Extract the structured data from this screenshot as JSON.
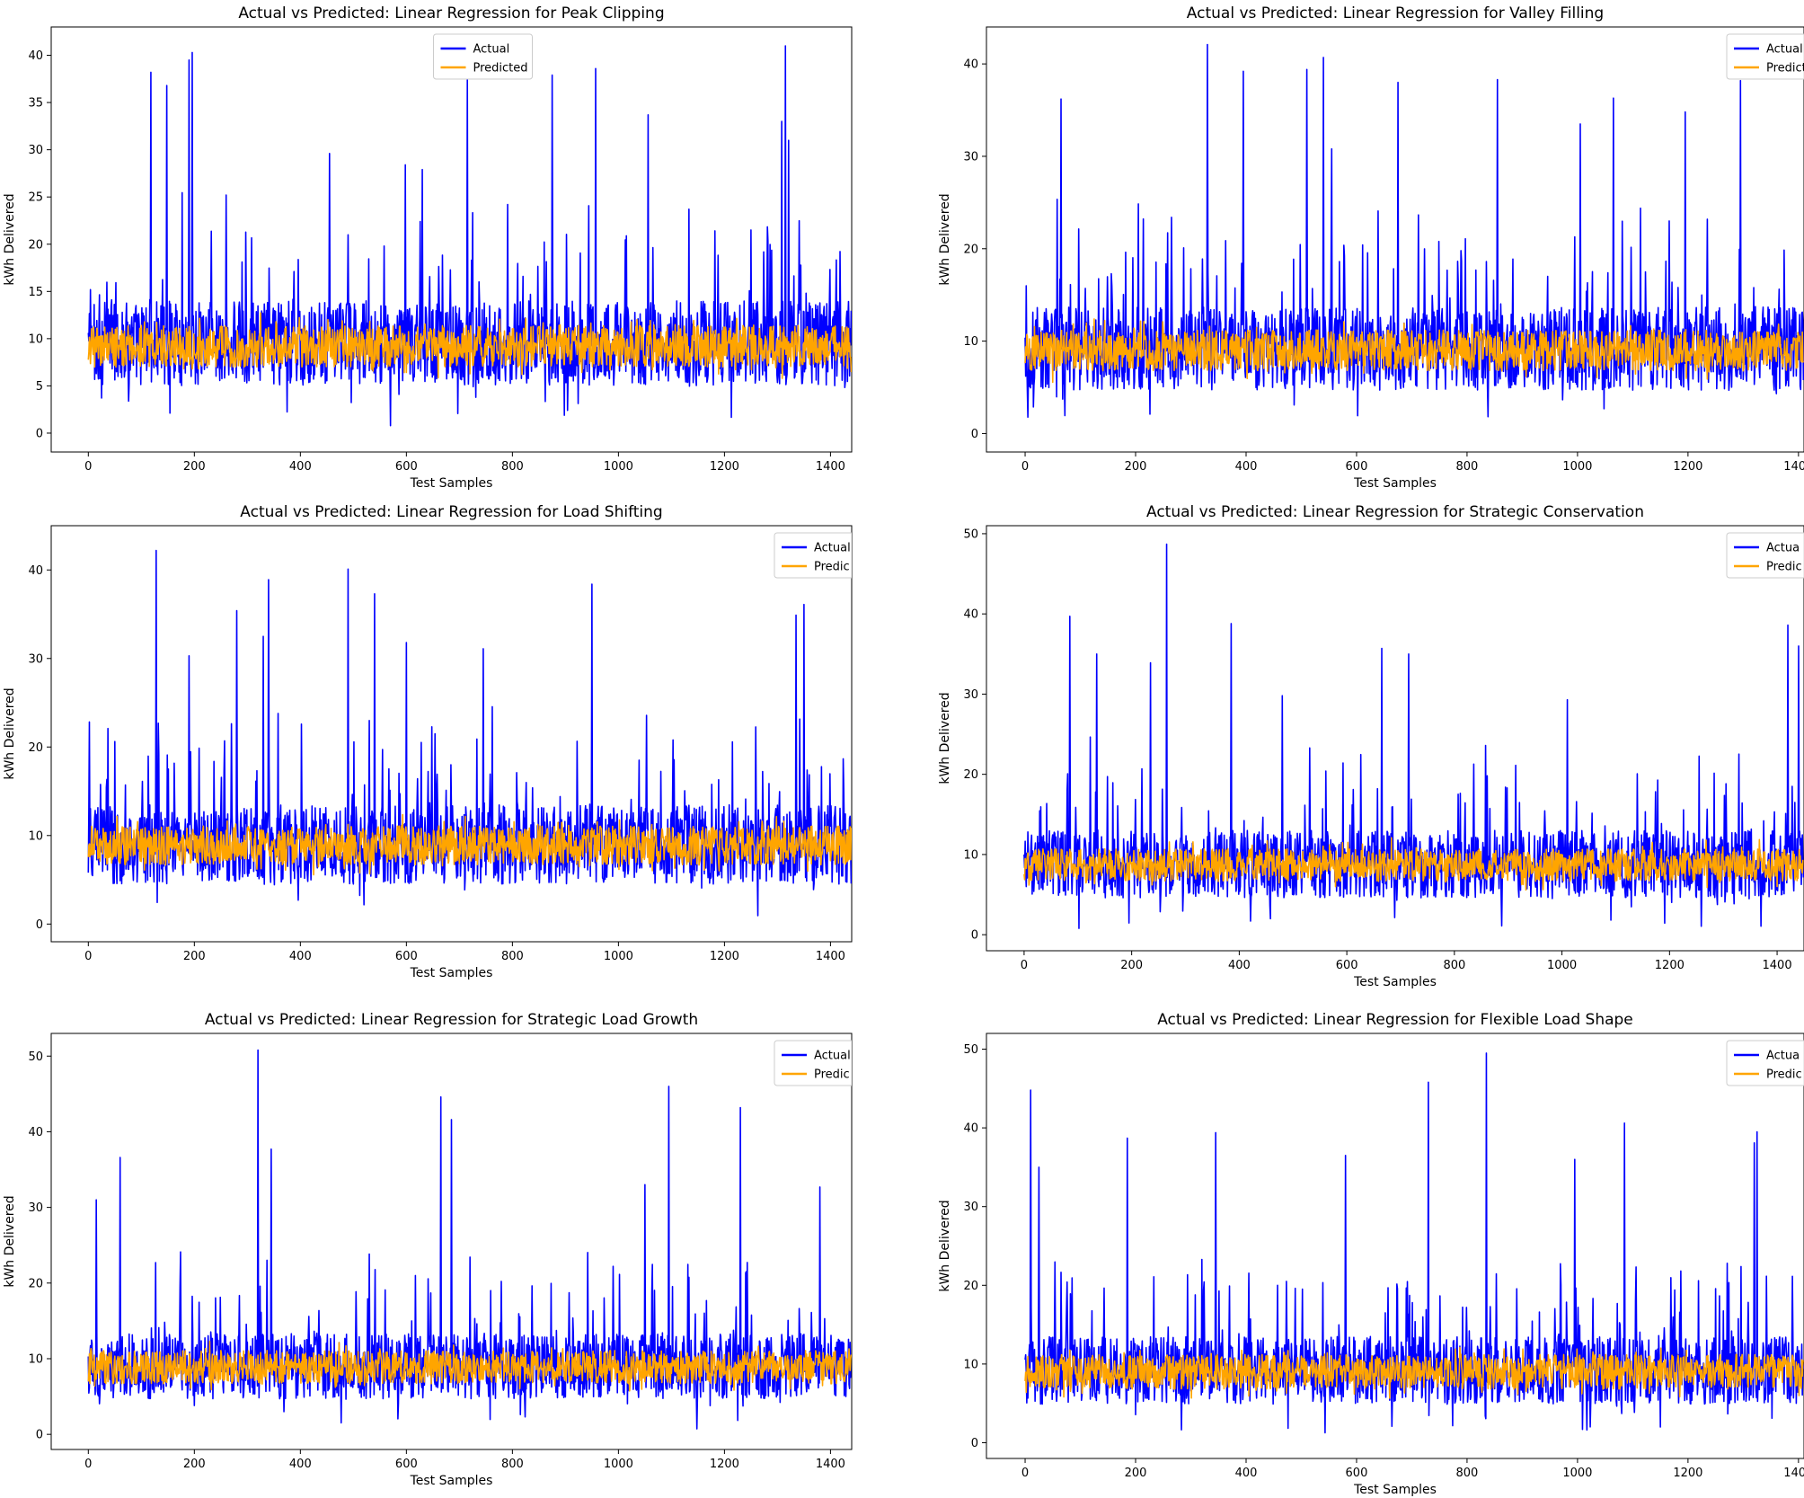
{
  "colors": {
    "actual": "#0000ff",
    "predicted": "#ffa500",
    "background": "#ffffff",
    "axis": "#000000",
    "legend_border": "#cccccc"
  },
  "chart_data": [
    {
      "type": "line",
      "title": "Actual vs Predicted: Linear Regression for Peak Clipping",
      "xlabel": "Test Samples",
      "ylabel": "kWh Delivered",
      "xlim": [
        -70,
        1440
      ],
      "ylim": [
        -2,
        43
      ],
      "xticks": [
        0,
        200,
        400,
        600,
        800,
        1000,
        1200,
        1400
      ],
      "yticks": [
        0,
        5,
        10,
        15,
        20,
        25,
        30,
        35,
        40
      ],
      "legend": {
        "placement": "top-center",
        "entries": [
          "Actual",
          "Predicted"
        ]
      },
      "series": [
        {
          "name": "Actual",
          "color": "#0000ff",
          "n": 1440,
          "center": 9.5,
          "spread": 4.5,
          "min": 0.5,
          "peaks": [
            [
              118,
              38.2
            ],
            [
              148,
              36.8
            ],
            [
              190,
              39.5
            ],
            [
              196,
              40.3
            ],
            [
              455,
              29.6
            ],
            [
              715,
              37.4
            ],
            [
              875,
              37.9
            ],
            [
              957,
              38.6
            ],
            [
              1056,
              33.7
            ],
            [
              1315,
              41
            ],
            [
              1321,
              31
            ],
            [
              1308,
              33
            ],
            [
              598,
              28.4
            ],
            [
              630,
              27.9
            ],
            [
              490,
              21
            ],
            [
              260,
              25.2
            ]
          ]
        },
        {
          "name": "Predicted",
          "color": "#ffa500",
          "n": 1440,
          "center": 9.2,
          "spread": 2.2,
          "min": 5.5
        }
      ]
    },
    {
      "type": "line",
      "title": "Actual vs Predicted: Linear Regression for Valley Filling",
      "xlabel": "Test Samples",
      "ylabel": "kWh Delivered",
      "xlim": [
        -70,
        1410
      ],
      "ylim": [
        -2,
        44
      ],
      "xticks": [
        0,
        200,
        400,
        600,
        800,
        1000,
        1200,
        1400
      ],
      "yticks": [
        0,
        10,
        20,
        30,
        40
      ],
      "legend": {
        "placement": "top-right",
        "entries": [
          "Actual",
          "Predicte"
        ]
      },
      "series": [
        {
          "name": "Actual",
          "color": "#0000ff",
          "n": 1410,
          "center": 9.2,
          "spread": 4.5,
          "min": 0.5,
          "peaks": [
            [
              65,
              36.2
            ],
            [
              330,
              42.1
            ],
            [
              395,
              39.2
            ],
            [
              510,
              39.4
            ],
            [
              540,
              40.7
            ],
            [
              555,
              30.8
            ],
            [
              675,
              38
            ],
            [
              855,
              38.3
            ],
            [
              1005,
              33.5
            ],
            [
              1065,
              36.3
            ],
            [
              1195,
              34.8
            ],
            [
              1295,
              38.2
            ],
            [
              265,
              23.4
            ]
          ]
        },
        {
          "name": "Predicte",
          "color": "#ffa500",
          "n": 1410,
          "center": 9.0,
          "spread": 2.2,
          "min": 5.5
        }
      ]
    },
    {
      "type": "line",
      "title": "Actual vs Predicted: Linear Regression for Load Shifting",
      "xlabel": "Test Samples",
      "ylabel": "kWh Delivered",
      "xlim": [
        -70,
        1440
      ],
      "ylim": [
        -2,
        45
      ],
      "xticks": [
        0,
        200,
        400,
        600,
        800,
        1000,
        1200,
        1400
      ],
      "yticks": [
        0,
        10,
        20,
        30,
        40
      ],
      "legend": {
        "placement": "top-right",
        "entries": [
          "Actual",
          "Predic"
        ]
      },
      "series": [
        {
          "name": "Actual",
          "color": "#0000ff",
          "n": 1440,
          "center": 9.0,
          "spread": 4.5,
          "min": 0.5,
          "peaks": [
            [
              128,
              42.2
            ],
            [
              280,
              35.4
            ],
            [
              330,
              32.5
            ],
            [
              340,
              38.9
            ],
            [
              490,
              40.1
            ],
            [
              540,
              37.3
            ],
            [
              950,
              38.4
            ],
            [
              1335,
              34.9
            ],
            [
              1350,
              36.1
            ],
            [
              190,
              30.3
            ],
            [
              600,
              31.8
            ],
            [
              745,
              31.1
            ]
          ]
        },
        {
          "name": "Predic",
          "color": "#ffa500",
          "n": 1440,
          "center": 8.9,
          "spread": 2.2,
          "min": 5.5
        }
      ]
    },
    {
      "type": "line",
      "title": "Actual vs Predicted: Linear Regression for Strategic Conservation",
      "xlabel": "Test Samples",
      "ylabel": "kWh Delivered",
      "xlim": [
        -70,
        1450
      ],
      "ylim": [
        -2,
        51
      ],
      "xticks": [
        0,
        200,
        400,
        600,
        800,
        1000,
        1200,
        1400
      ],
      "yticks": [
        0,
        10,
        20,
        30,
        40,
        50
      ],
      "legend": {
        "placement": "top-right",
        "entries": [
          "Actua",
          "Predic"
        ]
      },
      "series": [
        {
          "name": "Actua",
          "color": "#0000ff",
          "n": 1450,
          "center": 8.8,
          "spread": 4.2,
          "min": 0.5,
          "peaks": [
            [
              85,
              39.7
            ],
            [
              135,
              35
            ],
            [
              265,
              48.7
            ],
            [
              385,
              38.8
            ],
            [
              665,
              35.7
            ],
            [
              715,
              35
            ],
            [
              1010,
              29.3
            ],
            [
              1420,
              38.6
            ],
            [
              1440,
              36
            ],
            [
              235,
              33.9
            ],
            [
              480,
              29.8
            ]
          ]
        },
        {
          "name": "Predic",
          "color": "#ffa500",
          "n": 1450,
          "center": 8.7,
          "spread": 2.0,
          "min": 5.5
        }
      ]
    },
    {
      "type": "line",
      "title": "Actual vs Predicted: Linear Regression for Strategic Load Growth",
      "xlabel": "Test Samples",
      "ylabel": "kWh Delivered",
      "xlim": [
        -70,
        1440
      ],
      "ylim": [
        -2,
        53
      ],
      "xticks": [
        0,
        200,
        400,
        600,
        800,
        1000,
        1200,
        1400
      ],
      "yticks": [
        0,
        10,
        20,
        30,
        40,
        50
      ],
      "legend": {
        "placement": "top-right",
        "entries": [
          "Actual",
          "Predic"
        ]
      },
      "series": [
        {
          "name": "Actual",
          "color": "#0000ff",
          "n": 1440,
          "center": 9.0,
          "spread": 4.3,
          "min": 0.3,
          "peaks": [
            [
              320,
              50.8
            ],
            [
              665,
              44.6
            ],
            [
              685,
              41.6
            ],
            [
              1095,
              46
            ],
            [
              1230,
              43.2
            ],
            [
              60,
              36.6
            ],
            [
              345,
              37.7
            ],
            [
              1380,
              32.7
            ],
            [
              15,
              31
            ],
            [
              1050,
              33
            ]
          ]
        },
        {
          "name": "Predic",
          "color": "#ffa500",
          "n": 1440,
          "center": 8.9,
          "spread": 2.2,
          "min": 5.5
        }
      ]
    },
    {
      "type": "line",
      "title": "Actual vs Predicted: Linear Regression for Flexible Load Shape",
      "xlabel": "Test Samples",
      "ylabel": "kWh Delivered",
      "xlim": [
        -70,
        1410
      ],
      "ylim": [
        -2,
        52
      ],
      "xticks": [
        0,
        200,
        400,
        600,
        800,
        1000,
        1200,
        1400
      ],
      "yticks": [
        0,
        10,
        20,
        30,
        40,
        50
      ],
      "legend": {
        "placement": "top-right",
        "entries": [
          "Actua",
          "Predic"
        ]
      },
      "series": [
        {
          "name": "Actua",
          "color": "#0000ff",
          "n": 1410,
          "center": 9.2,
          "spread": 4.3,
          "min": 0.5,
          "peaks": [
            [
              10,
              44.8
            ],
            [
              730,
              45.8
            ],
            [
              835,
              49.5
            ],
            [
              1085,
              40.6
            ],
            [
              1325,
              39.5
            ],
            [
              1320,
              38.1
            ],
            [
              345,
              39.4
            ],
            [
              185,
              38.7
            ],
            [
              995,
              36
            ],
            [
              580,
              36.5
            ],
            [
              25,
              35
            ]
          ]
        },
        {
          "name": "Predic",
          "color": "#ffa500",
          "n": 1410,
          "center": 9.0,
          "spread": 2.2,
          "min": 5.5
        }
      ]
    }
  ]
}
